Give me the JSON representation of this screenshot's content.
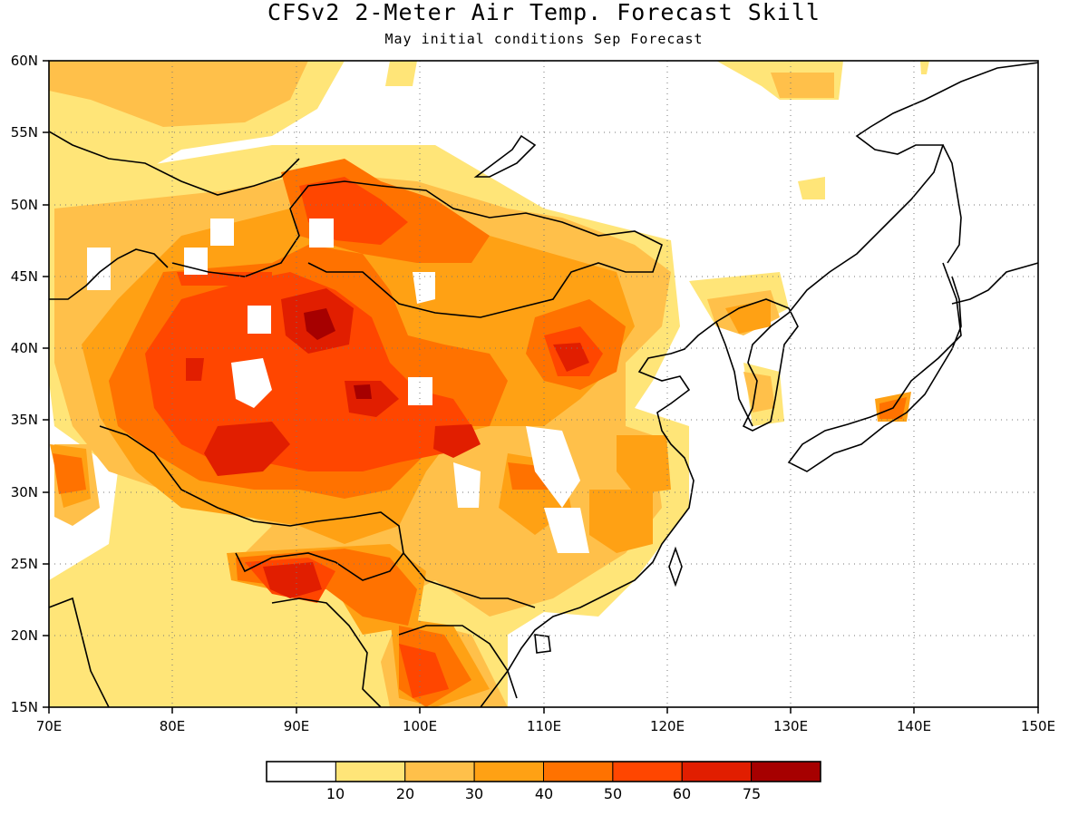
{
  "title": "CFSv2 2-Meter Air Temp. Forecast Skill",
  "subtitle": "May initial conditions  Sep Forecast",
  "map": {
    "lon_range": [
      70,
      150
    ],
    "lat_range": [
      15,
      60
    ],
    "lon_ticks": [
      "70E",
      "80E",
      "90E",
      "100E",
      "110E",
      "120E",
      "130E",
      "140E",
      "150E"
    ],
    "lat_ticks": [
      "60N",
      "55N",
      "50N",
      "45N",
      "40N",
      "35N",
      "30N",
      "25N",
      "20N",
      "15N"
    ],
    "gridlines": "dotted"
  },
  "colorbar": {
    "labels": [
      "10",
      "20",
      "30",
      "40",
      "50",
      "60",
      "75"
    ],
    "colors": [
      "#ffffff",
      "#ffe578",
      "#ffc04a",
      "#ffa114",
      "#ff7200",
      "#ff4600",
      "#e11e00",
      "#a60000"
    ]
  }
}
